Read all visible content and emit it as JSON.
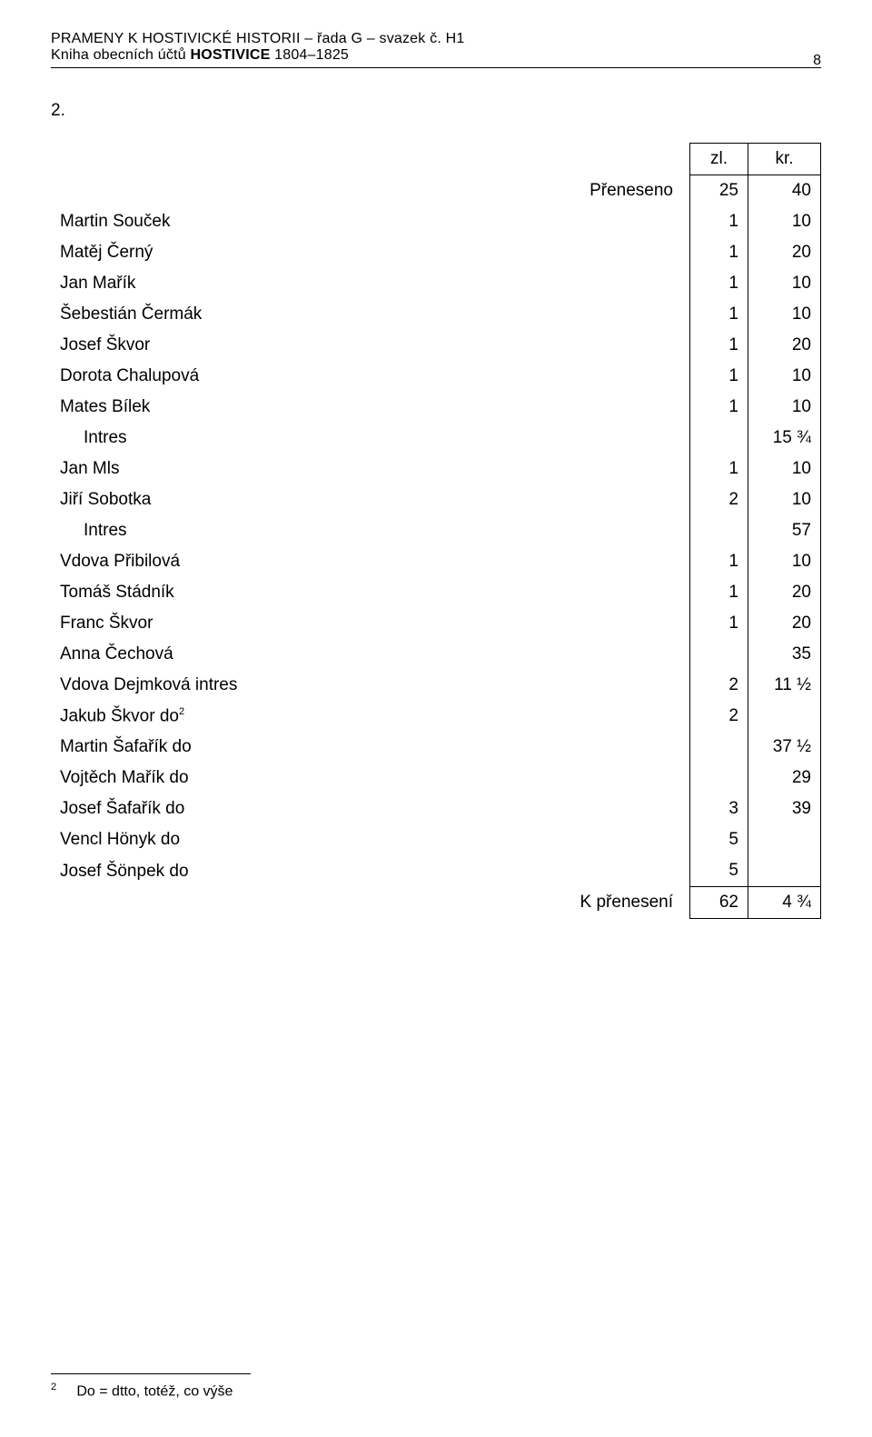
{
  "header": {
    "line1": "PRAMENY K HOSTIVICKÉ HISTORII – řada G – svazek č. H1",
    "line2_prefix": "Kniha obecních účtů ",
    "line2_bold": "HOSTIVICE",
    "line2_suffix": " 1804–1825",
    "page_number": "8"
  },
  "section_number": "2.",
  "columns": {
    "zl": "zl.",
    "kr": "kr."
  },
  "rows": [
    {
      "label": "Přeneseno",
      "zl": "25",
      "kr": "40",
      "indent": false,
      "align": "right"
    },
    {
      "label": "Martin Souček",
      "zl": "1",
      "kr": "10",
      "indent": false
    },
    {
      "label": "Matěj Černý",
      "zl": "1",
      "kr": "20",
      "indent": false
    },
    {
      "label": "Jan Mařík",
      "zl": "1",
      "kr": "10",
      "indent": false
    },
    {
      "label": "Šebestián Čermák",
      "zl": "1",
      "kr": "10",
      "indent": false
    },
    {
      "label": "Josef Škvor",
      "zl": "1",
      "kr": "20",
      "indent": false
    },
    {
      "label": "Dorota Chalupová",
      "zl": "1",
      "kr": "10",
      "indent": false
    },
    {
      "label": "Mates Bílek",
      "zl": "1",
      "kr": "10",
      "indent": false
    },
    {
      "label": "Intres",
      "zl": "",
      "kr": "15 ¾",
      "indent": true
    },
    {
      "label": "Jan Mls",
      "zl": "1",
      "kr": "10",
      "indent": false
    },
    {
      "label": "Jiří Sobotka",
      "zl": "2",
      "kr": "10",
      "indent": false
    },
    {
      "label": "Intres",
      "zl": "",
      "kr": "57",
      "indent": true
    },
    {
      "label": "Vdova Přibilová",
      "zl": "1",
      "kr": "10",
      "indent": false
    },
    {
      "label": "Tomáš Stádník",
      "zl": "1",
      "kr": "20",
      "indent": false
    },
    {
      "label": "Franc Škvor",
      "zl": "1",
      "kr": "20",
      "indent": false
    },
    {
      "label": "Anna Čechová",
      "zl": "",
      "kr": "35",
      "indent": false
    },
    {
      "label": "Vdova Dejmková intres",
      "zl": "2",
      "kr": "11 ½",
      "indent": false
    },
    {
      "label": "Jakub Škvor do",
      "sup": "2",
      "zl": "2",
      "kr": "",
      "indent": false
    },
    {
      "label": "Martin Šafařík do",
      "zl": "",
      "kr": "37 ½",
      "indent": false
    },
    {
      "label": "Vojtěch Mařík do",
      "zl": "",
      "kr": "29",
      "indent": false
    },
    {
      "label": "Josef Šafařík do",
      "zl": "3",
      "kr": "39",
      "indent": false
    },
    {
      "label": "Vencl Hönyk do",
      "zl": "5",
      "kr": "",
      "indent": false
    },
    {
      "label": "Josef Šönpek do",
      "zl": "5",
      "kr": "",
      "indent": false
    }
  ],
  "sum": {
    "label": "K přenesení",
    "zl": "62",
    "kr": "4 ¾"
  },
  "footnote": {
    "marker": "2",
    "text": "Do = dtto, totéž, co výše"
  }
}
